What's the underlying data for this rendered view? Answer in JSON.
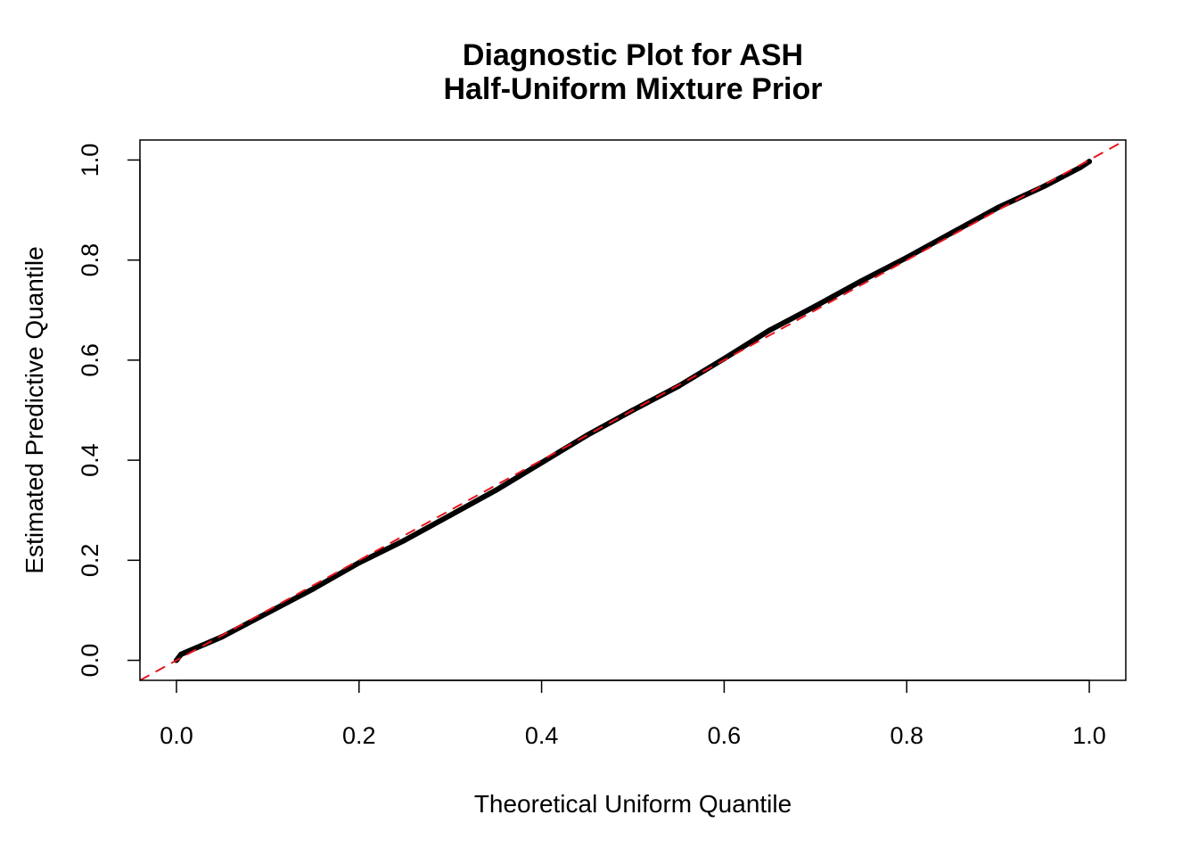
{
  "chart_data": {
    "type": "line",
    "title": "Diagnostic Plot for ASH",
    "subtitle": "Half-Uniform Mixture Prior",
    "xlabel": "Theoretical Uniform Quantile",
    "ylabel": "Estimated Predictive Quantile",
    "xlim": [
      -0.04,
      1.04
    ],
    "ylim": [
      -0.04,
      1.04
    ],
    "xticks": [
      "0.0",
      "0.2",
      "0.4",
      "0.6",
      "0.8",
      "1.0"
    ],
    "yticks": [
      "0.0",
      "0.2",
      "0.4",
      "0.6",
      "0.8",
      "1.0"
    ],
    "grid": false,
    "x": [
      0,
      0.005,
      0.05,
      0.1,
      0.15,
      0.2,
      0.25,
      0.3,
      0.35,
      0.4,
      0.45,
      0.5,
      0.55,
      0.6,
      0.65,
      0.7,
      0.75,
      0.8,
      0.85,
      0.9,
      0.95,
      0.99,
      1.0
    ],
    "y": [
      0,
      0.012,
      0.047,
      0.095,
      0.143,
      0.195,
      0.24,
      0.29,
      0.34,
      0.395,
      0.45,
      0.5,
      0.548,
      0.603,
      0.66,
      0.708,
      0.758,
      0.805,
      0.855,
      0.905,
      0.947,
      0.985,
      0.997
    ],
    "series_color": "#000000",
    "reference_line": {
      "intercept": 0,
      "slope": 1,
      "style": "dashed",
      "color": "#e8141c"
    }
  }
}
